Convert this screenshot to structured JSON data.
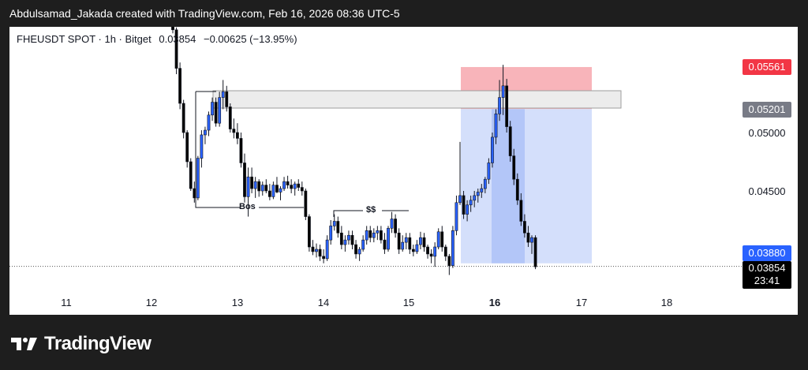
{
  "header": {
    "credit": "Abdulsamad_Jakada created with TradingView.com, Feb 16, 2026 08:36 UTC-5"
  },
  "legend": {
    "symbol": "FHEUSDT SPOT · 1h · Bitget",
    "price": "0.03854",
    "change": "−0.00625 (−13.95%)"
  },
  "chart_data": {
    "type": "candlestick",
    "x_axis": {
      "labels": [
        "11",
        "12",
        "13",
        "14",
        "15",
        "16",
        "17",
        "18"
      ],
      "bold_label": "16"
    },
    "y_axis": {
      "range": [
        0.0383,
        0.0595
      ],
      "ticks": [
        "0.05500",
        "0.05000",
        "0.04500"
      ]
    },
    "price_tags": [
      {
        "value": "0.05561",
        "bg": "#f23645",
        "fg": "#ffffff"
      },
      {
        "value": "0.05201",
        "bg": "#787b86",
        "fg": "#ffffff"
      },
      {
        "value": "0.03880",
        "bg": "#2962ff",
        "fg": "#ffffff"
      },
      {
        "value": "0.03854",
        "countdown": "23:41",
        "bg": "#000000",
        "fg": "#ffffff"
      }
    ],
    "annotations": {
      "bos": "Bos",
      "liquidity": "$$"
    },
    "colors": {
      "up": "#2962ff",
      "down": "#000000",
      "stop": "#f7a7ae",
      "target": "#cfdcfb",
      "zone": "#ececec"
    },
    "position": {
      "entry": 0.05201,
      "stop": 0.05561,
      "target": 0.0388
    },
    "candles": [
      [
        0.0607,
        0.0607,
        0.0585,
        0.0588
      ],
      [
        0.0588,
        0.059,
        0.055,
        0.0555
      ],
      [
        0.0555,
        0.056,
        0.052,
        0.0525
      ],
      [
        0.0525,
        0.0528,
        0.0495,
        0.05
      ],
      [
        0.05,
        0.0502,
        0.047,
        0.0475
      ],
      [
        0.0475,
        0.0478,
        0.045,
        0.0452
      ],
      [
        0.0452,
        0.0458,
        0.044,
        0.0444
      ],
      [
        0.0444,
        0.048,
        0.0442,
        0.0478
      ],
      [
        0.0478,
        0.0502,
        0.047,
        0.0498
      ],
      [
        0.0498,
        0.0505,
        0.049,
        0.0502
      ],
      [
        0.0502,
        0.0518,
        0.0497,
        0.0515
      ],
      [
        0.0515,
        0.053,
        0.051,
        0.0526
      ],
      [
        0.0526,
        0.053,
        0.0505,
        0.0508
      ],
      [
        0.0508,
        0.0535,
        0.0505,
        0.053
      ],
      [
        0.053,
        0.0545,
        0.052,
        0.0535
      ],
      [
        0.0535,
        0.054,
        0.0518,
        0.0522
      ],
      [
        0.0522,
        0.0525,
        0.05,
        0.0503
      ],
      [
        0.0503,
        0.0512,
        0.0495,
        0.05
      ],
      [
        0.05,
        0.0508,
        0.049,
        0.0495
      ],
      [
        0.0495,
        0.05,
        0.047,
        0.0474
      ],
      [
        0.0474,
        0.0482,
        0.044,
        0.0445
      ],
      [
        0.0445,
        0.047,
        0.0428,
        0.0462
      ],
      [
        0.0462,
        0.047,
        0.0448,
        0.0452
      ],
      [
        0.0452,
        0.0462,
        0.0444,
        0.0458
      ],
      [
        0.0458,
        0.046,
        0.0445,
        0.045
      ],
      [
        0.045,
        0.0458,
        0.0446,
        0.0455
      ],
      [
        0.0455,
        0.046,
        0.0448,
        0.045
      ],
      [
        0.045,
        0.0456,
        0.0442,
        0.0445
      ],
      [
        0.0445,
        0.0458,
        0.0443,
        0.0455
      ],
      [
        0.0455,
        0.0462,
        0.0448,
        0.0449
      ],
      [
        0.0449,
        0.0454,
        0.0442,
        0.0452
      ],
      [
        0.0452,
        0.0462,
        0.045,
        0.0458
      ],
      [
        0.0458,
        0.0463,
        0.0452,
        0.0455
      ],
      [
        0.0455,
        0.046,
        0.0448,
        0.0452
      ],
      [
        0.0452,
        0.0458,
        0.0446,
        0.0456
      ],
      [
        0.0456,
        0.046,
        0.045,
        0.0453
      ],
      [
        0.0453,
        0.0458,
        0.0446,
        0.045
      ],
      [
        0.045,
        0.0452,
        0.0425,
        0.0428
      ],
      [
        0.0428,
        0.043,
        0.0398,
        0.0402
      ],
      [
        0.0402,
        0.0408,
        0.0395,
        0.0398
      ],
      [
        0.0398,
        0.0405,
        0.0393,
        0.04
      ],
      [
        0.04,
        0.0404,
        0.039,
        0.0394
      ],
      [
        0.0394,
        0.04,
        0.0388,
        0.0392
      ],
      [
        0.0392,
        0.0412,
        0.039,
        0.0408
      ],
      [
        0.0408,
        0.0425,
        0.0404,
        0.042
      ],
      [
        0.042,
        0.043,
        0.0416,
        0.0424
      ],
      [
        0.0424,
        0.0428,
        0.041,
        0.0414
      ],
      [
        0.0414,
        0.042,
        0.04,
        0.0404
      ],
      [
        0.0404,
        0.0412,
        0.0398,
        0.0408
      ],
      [
        0.0408,
        0.0416,
        0.0404,
        0.0412
      ],
      [
        0.0412,
        0.0416,
        0.04,
        0.0404
      ],
      [
        0.0404,
        0.0408,
        0.0392,
        0.0396
      ],
      [
        0.0396,
        0.0402,
        0.039,
        0.04
      ],
      [
        0.04,
        0.0412,
        0.0398,
        0.0408
      ],
      [
        0.0408,
        0.042,
        0.0404,
        0.0416
      ],
      [
        0.0416,
        0.042,
        0.0406,
        0.041
      ],
      [
        0.041,
        0.0418,
        0.0406,
        0.0414
      ],
      [
        0.0414,
        0.042,
        0.0408,
        0.0416
      ],
      [
        0.0416,
        0.042,
        0.0405,
        0.0408
      ],
      [
        0.0408,
        0.0414,
        0.0396,
        0.04
      ],
      [
        0.04,
        0.042,
        0.0398,
        0.0418
      ],
      [
        0.0418,
        0.0432,
        0.0414,
        0.0426
      ],
      [
        0.0426,
        0.043,
        0.041,
        0.0414
      ],
      [
        0.0414,
        0.0418,
        0.0396,
        0.04
      ],
      [
        0.04,
        0.0412,
        0.0398,
        0.0406
      ],
      [
        0.0406,
        0.0414,
        0.04,
        0.041
      ],
      [
        0.041,
        0.0414,
        0.0396,
        0.04
      ],
      [
        0.04,
        0.0404,
        0.0394,
        0.0398
      ],
      [
        0.0398,
        0.0408,
        0.0396,
        0.0404
      ],
      [
        0.0404,
        0.0415,
        0.04,
        0.041
      ],
      [
        0.041,
        0.0414,
        0.0398,
        0.0402
      ],
      [
        0.0402,
        0.0404,
        0.0392,
        0.0396
      ],
      [
        0.0396,
        0.04,
        0.0388,
        0.0394
      ],
      [
        0.0394,
        0.0406,
        0.0385,
        0.0402
      ],
      [
        0.0402,
        0.0418,
        0.04,
        0.0415
      ],
      [
        0.0415,
        0.042,
        0.0398,
        0.0402
      ],
      [
        0.0402,
        0.0404,
        0.039,
        0.0394
      ],
      [
        0.0394,
        0.0396,
        0.0378,
        0.0386
      ],
      [
        0.0386,
        0.042,
        0.0384,
        0.0416
      ],
      [
        0.0416,
        0.0446,
        0.0412,
        0.044
      ],
      [
        0.044,
        0.0492,
        0.0438,
        0.0446
      ],
      [
        0.0446,
        0.045,
        0.0426,
        0.043
      ],
      [
        0.043,
        0.0442,
        0.0424,
        0.0438
      ],
      [
        0.0438,
        0.0446,
        0.0432,
        0.0442
      ],
      [
        0.0442,
        0.045,
        0.0436,
        0.0446
      ],
      [
        0.0446,
        0.0452,
        0.044,
        0.0449
      ],
      [
        0.0449,
        0.0456,
        0.0444,
        0.0452
      ],
      [
        0.0452,
        0.0462,
        0.0448,
        0.046
      ],
      [
        0.046,
        0.0478,
        0.0456,
        0.0474
      ],
      [
        0.0474,
        0.05,
        0.047,
        0.0496
      ],
      [
        0.0496,
        0.052,
        0.049,
        0.0516
      ],
      [
        0.0516,
        0.0545,
        0.051,
        0.053
      ],
      [
        0.053,
        0.0558,
        0.0515,
        0.054
      ],
      [
        0.054,
        0.0546,
        0.05,
        0.0505
      ],
      [
        0.0505,
        0.051,
        0.0475,
        0.048
      ],
      [
        0.048,
        0.0486,
        0.0455,
        0.046
      ],
      [
        0.046,
        0.0465,
        0.0438,
        0.0442
      ],
      [
        0.0442,
        0.0448,
        0.042,
        0.0424
      ],
      [
        0.0424,
        0.043,
        0.041,
        0.0414
      ],
      [
        0.0414,
        0.042,
        0.0402,
        0.0406
      ],
      [
        0.0406,
        0.0412,
        0.0396,
        0.041
      ],
      [
        0.041,
        0.0412,
        0.0383,
        0.0385
      ]
    ]
  }
}
